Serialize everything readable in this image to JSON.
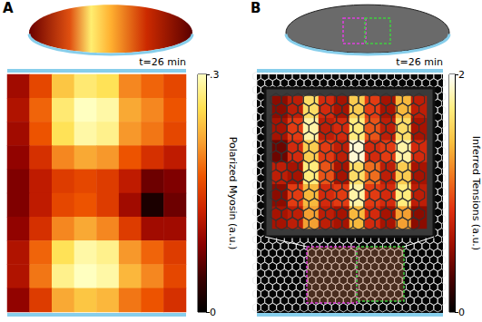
{
  "chart_data": [
    {
      "panel": "A",
      "type": "heatmap",
      "annotation": "t=26 min",
      "tick_labels": false,
      "cells": [
        [
          0.1,
          0.16,
          0.24,
          0.27,
          0.26,
          0.2,
          0.18,
          0.16
        ],
        [
          0.11,
          0.18,
          0.27,
          0.3,
          0.29,
          0.22,
          0.2,
          0.17
        ],
        [
          0.1,
          0.17,
          0.26,
          0.29,
          0.28,
          0.21,
          0.19,
          0.16
        ],
        [
          0.09,
          0.14,
          0.2,
          0.22,
          0.21,
          0.17,
          0.14,
          0.12
        ],
        [
          0.08,
          0.12,
          0.15,
          0.16,
          0.15,
          0.12,
          0.07,
          0.08
        ],
        [
          0.08,
          0.12,
          0.16,
          0.17,
          0.15,
          0.1,
          0.02,
          0.07
        ],
        [
          0.09,
          0.14,
          0.2,
          0.22,
          0.2,
          0.15,
          0.1,
          0.1
        ],
        [
          0.11,
          0.18,
          0.26,
          0.29,
          0.28,
          0.21,
          0.18,
          0.15
        ],
        [
          0.11,
          0.19,
          0.28,
          0.3,
          0.29,
          0.23,
          0.2,
          0.16
        ],
        [
          0.09,
          0.15,
          0.22,
          0.24,
          0.23,
          0.19,
          0.17,
          0.14
        ]
      ],
      "colorbar": {
        "label": "Polarized Myosin (a.u.)",
        "range": [
          0,
          0.3
        ],
        "ticks": [
          0,
          {
            "value": 0.3,
            "label": ".3"
          }
        ]
      }
    },
    {
      "panel": "B",
      "type": "heatmap",
      "annotation": "t=26 min",
      "tick_labels": false,
      "cells": [
        [
          0.5,
          0.7,
          1.6,
          0.8,
          0.6,
          1.5,
          0.9,
          0.6,
          1.4,
          0.7
        ],
        [
          0.6,
          0.9,
          1.8,
          0.7,
          0.8,
          1.7,
          1.0,
          0.7,
          1.6,
          0.6
        ],
        [
          0.4,
          0.8,
          1.5,
          0.9,
          0.7,
          1.9,
          0.8,
          0.9,
          1.8,
          0.8
        ],
        [
          0.7,
          0.6,
          1.7,
          1.0,
          0.6,
          1.6,
          1.1,
          0.7,
          1.5,
          0.6
        ],
        [
          0.5,
          0.9,
          1.4,
          0.8,
          0.9,
          1.8,
          0.9,
          0.8,
          1.7,
          0.7
        ],
        [
          0.6,
          0.7,
          1.3,
          0.7,
          0.6,
          1.4,
          0.8,
          0.6,
          1.3,
          0.5
        ]
      ],
      "colorbar": {
        "label": "Inferred Tensions (a.u.)",
        "range": [
          0,
          2
        ],
        "ticks": [
          0,
          2
        ]
      }
    }
  ]
}
